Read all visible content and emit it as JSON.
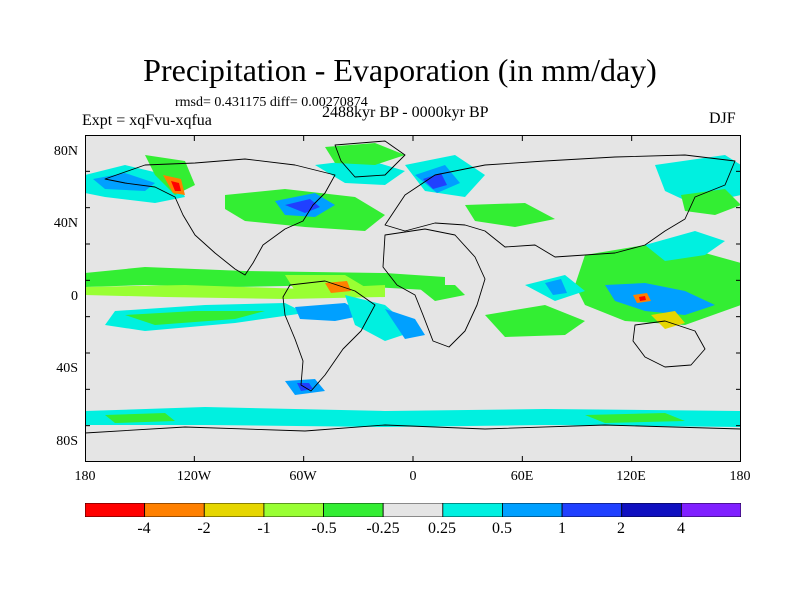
{
  "figure": {
    "title": "Precipitation - Evaporation (in mm/day)",
    "stats": "rmsd= 0.431175 diff= 0.00270874",
    "experiment": "Expt = xqFvu-xqfua",
    "period": "2488kyr BP - 0000kyr BP",
    "season": "DJF"
  },
  "map": {
    "projection": "cylindrical-equidistant",
    "lon_range": [
      -180,
      180
    ],
    "lat_range": [
      -90,
      90
    ],
    "background_color": "#e5e5e5",
    "lat_ticks": [
      "80N",
      "40N",
      "0",
      "40S",
      "80S"
    ],
    "lon_ticks": [
      "180",
      "120W",
      "60W",
      "0",
      "60E",
      "120E",
      "180"
    ]
  },
  "colorbar": {
    "boundary_labels": [
      "-4",
      "-2",
      "-1",
      "-0.5",
      "-0.25",
      "0.25",
      "0.5",
      "1",
      "2",
      "4"
    ],
    "colors": [
      "#ff0000",
      "#ff8000",
      "#e6d600",
      "#99ff33",
      "#33ee33",
      "#e5e5e5",
      "#00f0e0",
      "#00a0ff",
      "#2040ff",
      "#1010c0",
      "#8020ff"
    ]
  }
}
